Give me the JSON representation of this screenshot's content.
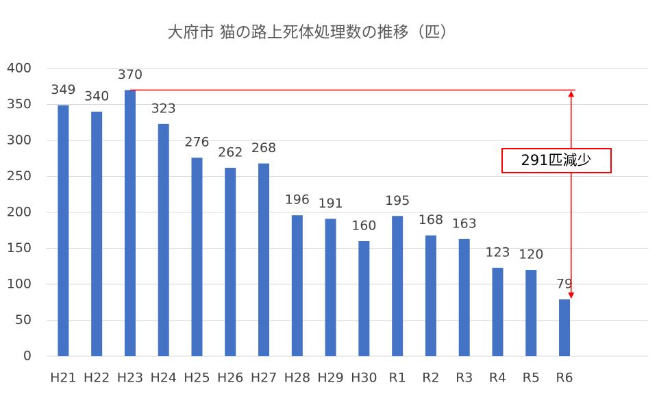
{
  "chart_data": {
    "type": "bar",
    "title": "大府市 猫の路上死体処理数の推移（匹）",
    "categories": [
      "H21",
      "H22",
      "H23",
      "H24",
      "H25",
      "H26",
      "H27",
      "H28",
      "H29",
      "H30",
      "R1",
      "R2",
      "R3",
      "R4",
      "R5",
      "R6",
      null,
      null
    ],
    "values": [
      349,
      340,
      370,
      323,
      276,
      262,
      268,
      196,
      191,
      160,
      195,
      168,
      163,
      123,
      120,
      79,
      null,
      null
    ],
    "color": "#4472c4",
    "ylim": [
      0,
      400
    ],
    "yticks": [
      0,
      50,
      100,
      150,
      200,
      250,
      300,
      350,
      400
    ],
    "grid": true,
    "annotation": "291匹減少",
    "annotation_color": "#ff0000"
  }
}
